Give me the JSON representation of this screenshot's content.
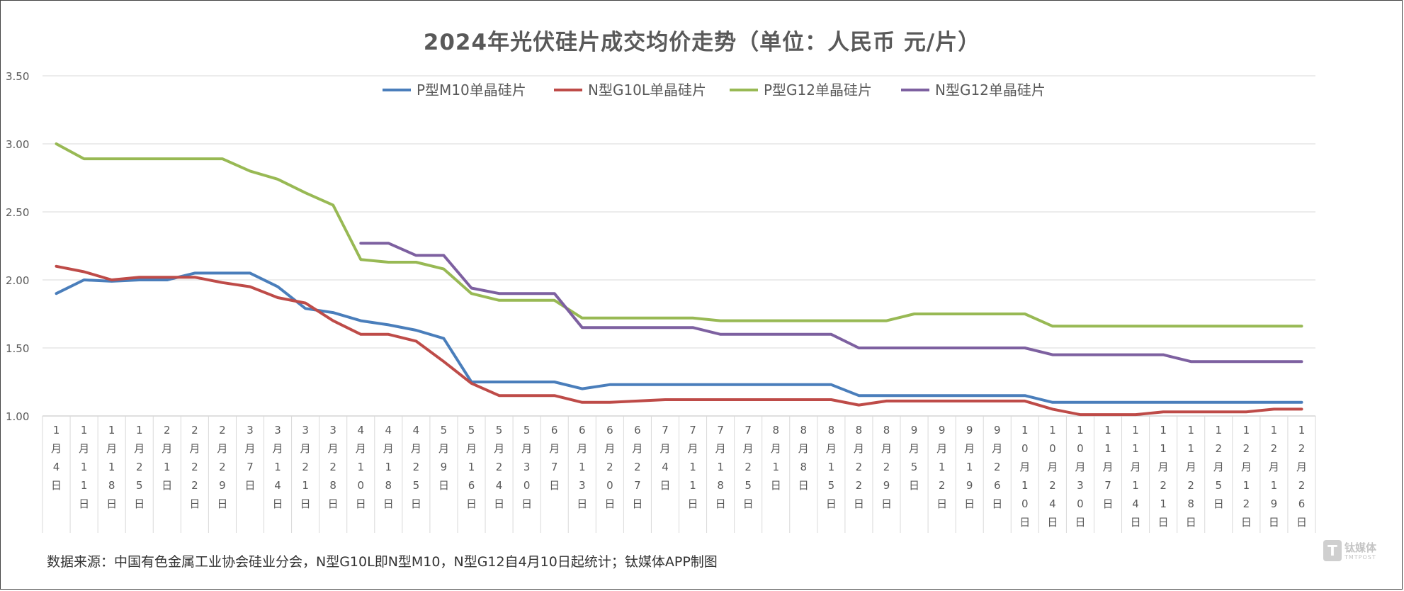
{
  "chart_data": {
    "type": "line",
    "title": "2024年光伏硅片成交均价走势（单位：人民币 元/片）",
    "ylim": [
      1.0,
      3.5
    ],
    "yticks": [
      "1.00",
      "1.50",
      "2.00",
      "2.50",
      "3.00",
      "3.50"
    ],
    "grid": true,
    "legend_position": "top-center",
    "categories": [
      "1月4日",
      "1月11日",
      "1月18日",
      "1月25日",
      "2月1日",
      "2月22日",
      "2月29日",
      "3月7日",
      "3月14日",
      "3月21日",
      "3月28日",
      "4月10日",
      "4月18日",
      "4月25日",
      "5月9日",
      "5月16日",
      "5月24日",
      "5月30日",
      "6月7日",
      "6月13日",
      "6月20日",
      "6月27日",
      "7月4日",
      "7月11日",
      "7月18日",
      "7月25日",
      "8月1日",
      "8月8日",
      "8月15日",
      "8月22日",
      "8月29日",
      "9月5日",
      "9月12日",
      "9月19日",
      "9月26日",
      "10月10日",
      "10月24日",
      "10月30日",
      "11月7日",
      "11月14日",
      "11月21日",
      "11月28日",
      "12月5日",
      "12月12日",
      "12月19日",
      "12月26日"
    ],
    "series": [
      {
        "name": "P型M10单晶硅片",
        "color": "#4a7ebb",
        "values": [
          1.9,
          2.0,
          1.99,
          2.0,
          2.0,
          2.05,
          2.05,
          2.05,
          1.95,
          1.79,
          1.76,
          1.7,
          1.67,
          1.63,
          1.57,
          1.25,
          1.25,
          1.25,
          1.25,
          1.2,
          1.23,
          1.23,
          1.23,
          1.23,
          1.23,
          1.23,
          1.23,
          1.23,
          1.23,
          1.15,
          1.15,
          1.15,
          1.15,
          1.15,
          1.15,
          1.15,
          1.1,
          1.1,
          1.1,
          1.1,
          1.1,
          1.1,
          1.1,
          1.1,
          1.1,
          1.1
        ]
      },
      {
        "name": "N型G10L单晶硅片",
        "color": "#be4b48",
        "values": [
          2.1,
          2.06,
          2.0,
          2.02,
          2.02,
          2.02,
          1.98,
          1.95,
          1.87,
          1.83,
          1.7,
          1.6,
          1.6,
          1.55,
          1.4,
          1.24,
          1.15,
          1.15,
          1.15,
          1.1,
          1.1,
          1.11,
          1.12,
          1.12,
          1.12,
          1.12,
          1.12,
          1.12,
          1.12,
          1.08,
          1.11,
          1.11,
          1.11,
          1.11,
          1.11,
          1.11,
          1.05,
          1.01,
          1.01,
          1.01,
          1.03,
          1.03,
          1.03,
          1.03,
          1.05,
          1.05
        ]
      },
      {
        "name": "P型G12单晶硅片",
        "color": "#98b954",
        "values": [
          3.0,
          2.89,
          2.89,
          2.89,
          2.89,
          2.89,
          2.89,
          2.8,
          2.74,
          2.64,
          2.55,
          2.15,
          2.13,
          2.13,
          2.08,
          1.9,
          1.85,
          1.85,
          1.85,
          1.72,
          1.72,
          1.72,
          1.72,
          1.72,
          1.7,
          1.7,
          1.7,
          1.7,
          1.7,
          1.7,
          1.7,
          1.75,
          1.75,
          1.75,
          1.75,
          1.75,
          1.66,
          1.66,
          1.66,
          1.66,
          1.66,
          1.66,
          1.66,
          1.66,
          1.66,
          1.66
        ]
      },
      {
        "name": "N型G12单晶硅片",
        "color": "#7d60a0",
        "values": [
          null,
          null,
          null,
          null,
          null,
          null,
          null,
          null,
          null,
          null,
          null,
          2.27,
          2.27,
          2.18,
          2.18,
          1.94,
          1.9,
          1.9,
          1.9,
          1.65,
          1.65,
          1.65,
          1.65,
          1.65,
          1.6,
          1.6,
          1.6,
          1.6,
          1.6,
          1.5,
          1.5,
          1.5,
          1.5,
          1.5,
          1.5,
          1.5,
          1.45,
          1.45,
          1.45,
          1.45,
          1.45,
          1.4,
          1.4,
          1.4,
          1.4,
          1.4
        ]
      }
    ]
  },
  "source_note": "数据来源：中国有色金属工业协会硅业分会，N型G10L即N型M10，N型G12自4月10日起统计；钛媒体APP制图",
  "watermark": {
    "logo_char": "T",
    "name": "钛媒体",
    "sub": "TMTPOST"
  }
}
